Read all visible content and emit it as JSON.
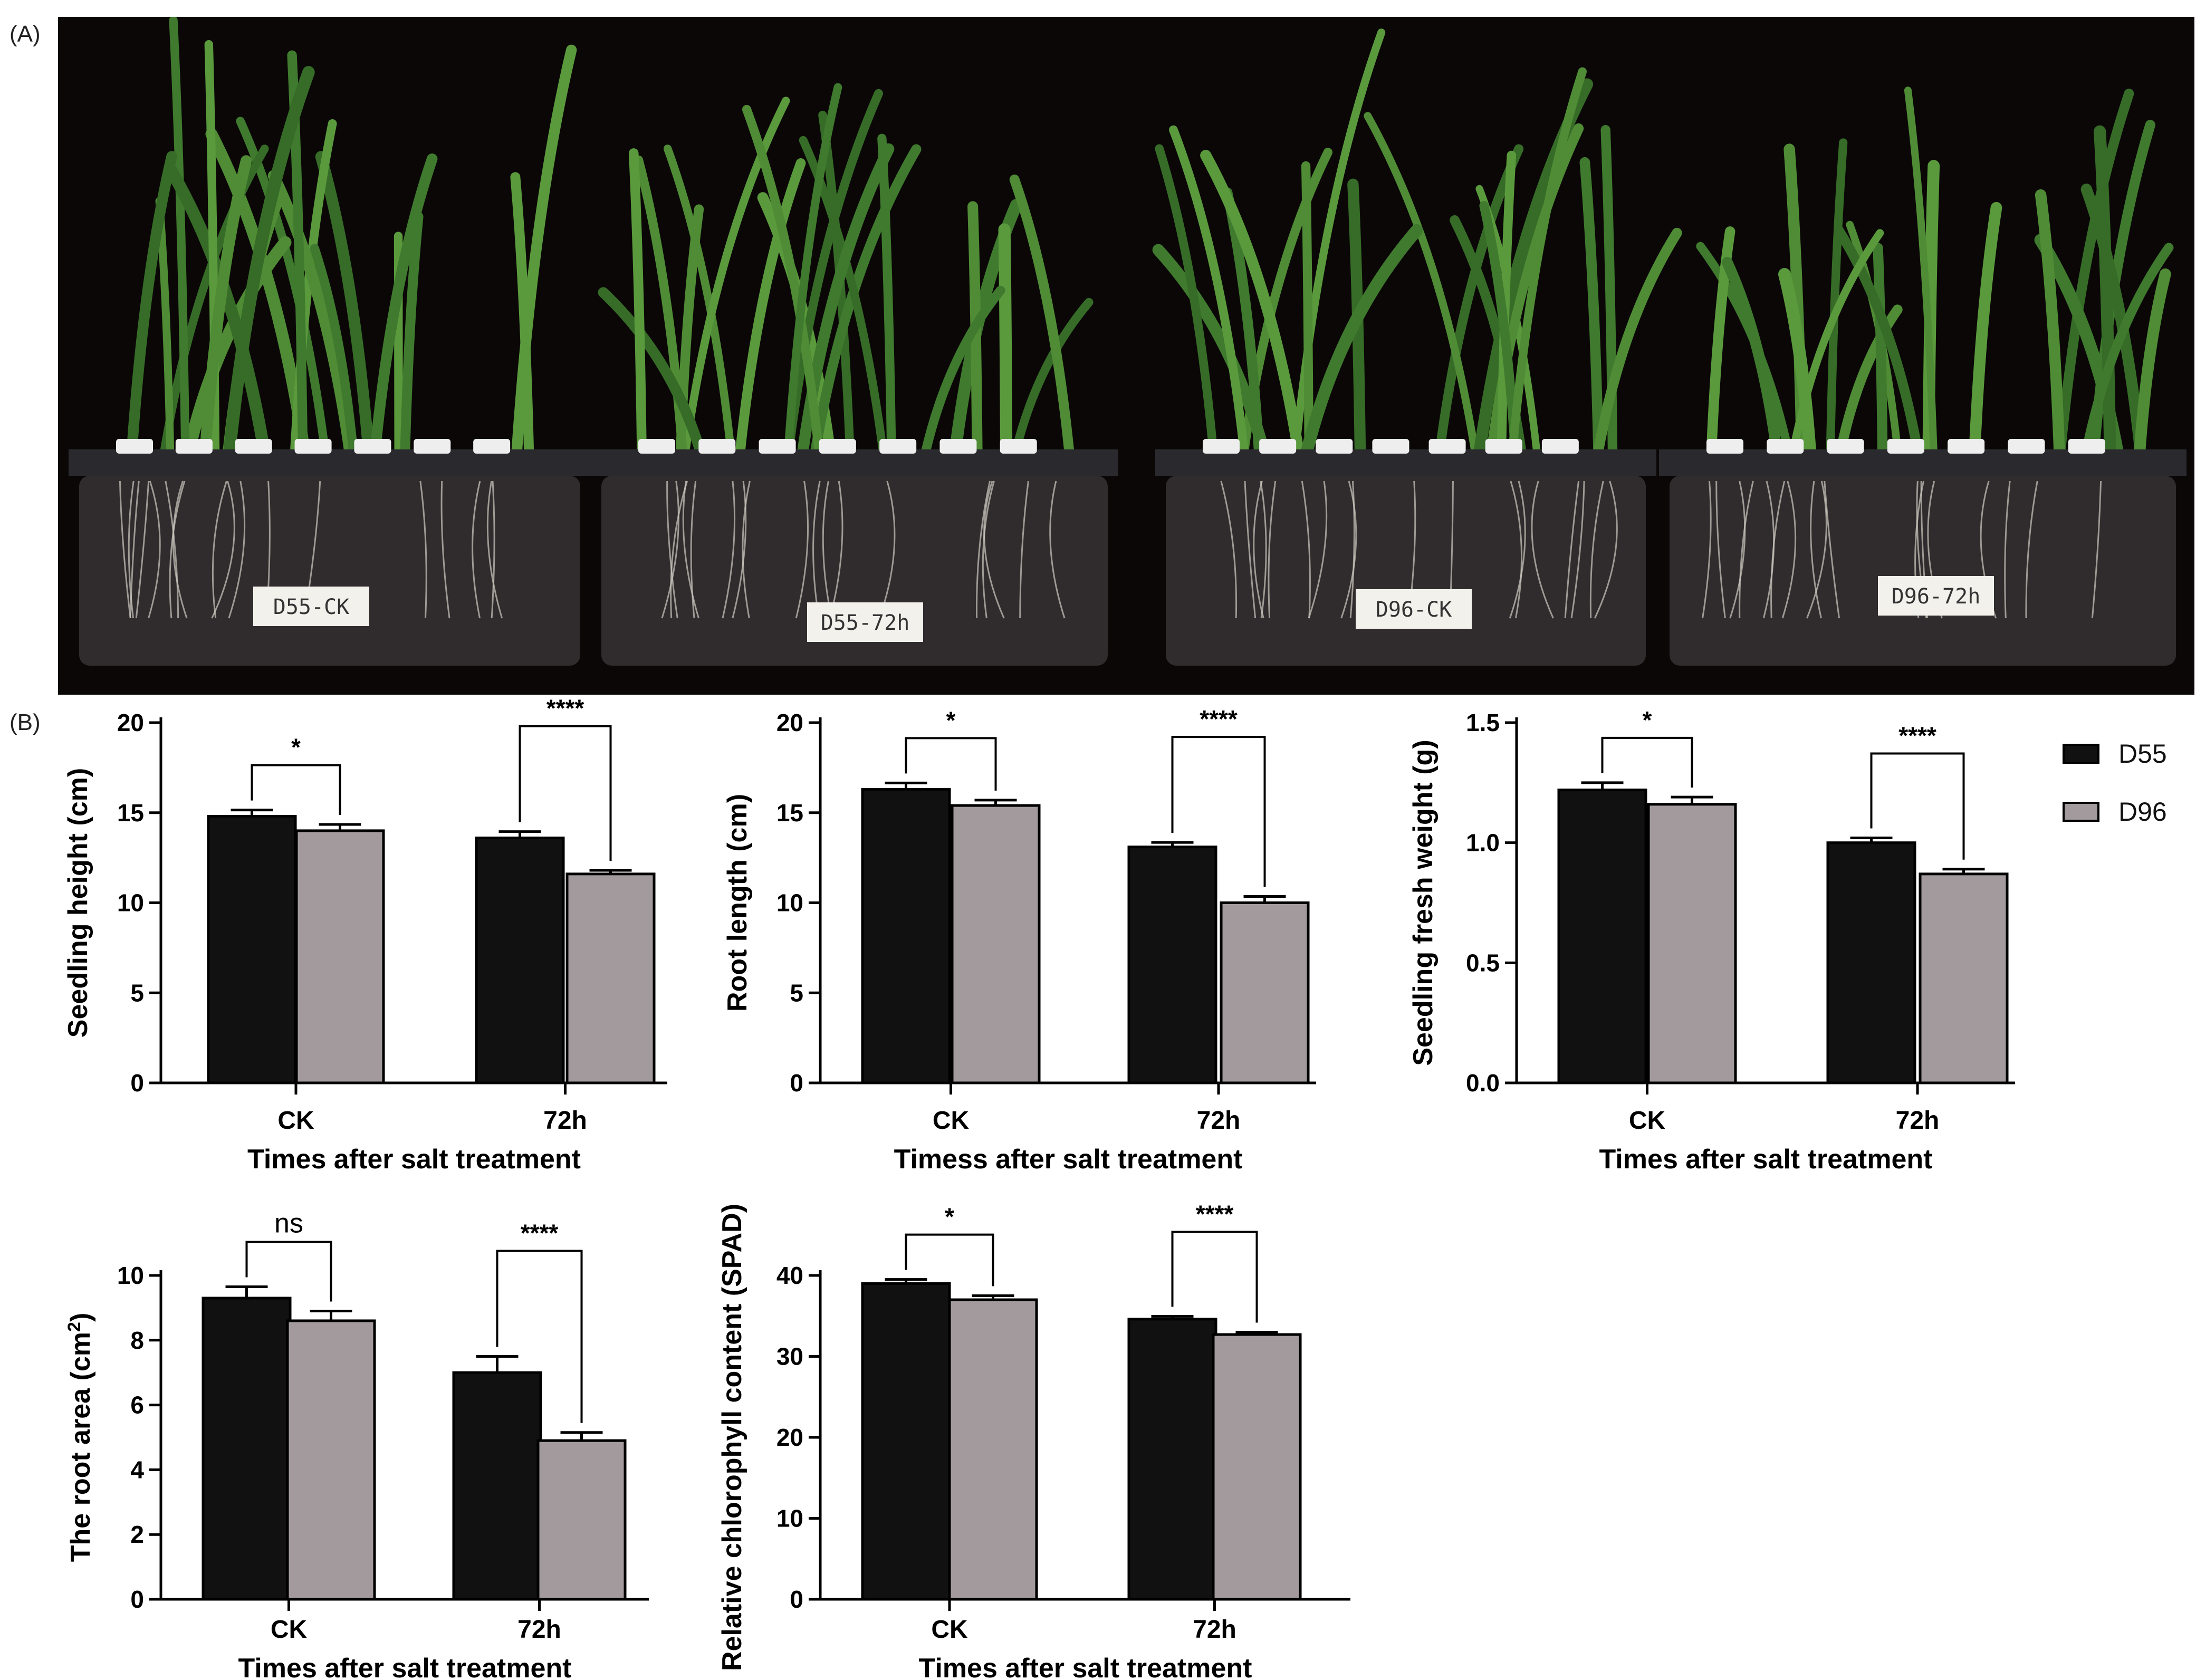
{
  "panels": {
    "a_label": "(A)",
    "b_label": "(B)"
  },
  "photo": {
    "labels": [
      "D55-CK",
      "D55-72h",
      "D96-CK",
      "D96-72h"
    ]
  },
  "legend": [
    {
      "name": "D55",
      "color": "#111111"
    },
    {
      "name": "D96",
      "color": "#a29a9c"
    }
  ],
  "chart_data": [
    {
      "type": "bar",
      "categories": [
        "CK",
        "72h"
      ],
      "series": [
        {
          "name": "D55",
          "values": [
            14.8,
            13.6
          ],
          "errors": [
            0.35,
            0.35
          ]
        },
        {
          "name": "D96",
          "values": [
            14.0,
            11.6
          ],
          "errors": [
            0.35,
            0.2
          ]
        }
      ],
      "significance": [
        "*",
        "****"
      ],
      "xlabel": "Times after salt treatment",
      "ylabel": "Seedling height (cm)",
      "ylim": [
        0,
        20
      ],
      "yticks": [
        "0",
        "5",
        "10",
        "15",
        "20"
      ]
    },
    {
      "type": "bar",
      "categories": [
        "CK",
        "72h"
      ],
      "series": [
        {
          "name": "D55",
          "values": [
            16.3,
            13.1
          ],
          "errors": [
            0.35,
            0.25
          ]
        },
        {
          "name": "D96",
          "values": [
            15.4,
            10.0
          ],
          "errors": [
            0.3,
            0.35
          ]
        }
      ],
      "significance": [
        "*",
        "****"
      ],
      "xlabel": "Timess after salt treatment",
      "ylabel": "Root length (cm)",
      "ylim": [
        0,
        20
      ],
      "yticks": [
        "0",
        "5",
        "10",
        "15",
        "20"
      ]
    },
    {
      "type": "bar",
      "categories": [
        "CK",
        "72h"
      ],
      "series": [
        {
          "name": "D55",
          "values": [
            1.22,
            1.0
          ],
          "errors": [
            0.03,
            0.02
          ]
        },
        {
          "name": "D96",
          "values": [
            1.16,
            0.87
          ],
          "errors": [
            0.03,
            0.02
          ]
        }
      ],
      "significance": [
        "*",
        "****"
      ],
      "xlabel": "Times after salt treatment",
      "ylabel": "Seedling fresh weight (g)",
      "ylim": [
        0,
        1.5
      ],
      "yticks": [
        "0.0",
        "0.5",
        "1.0",
        "1.5"
      ]
    },
    {
      "type": "bar",
      "categories": [
        "CK",
        "72h"
      ],
      "series": [
        {
          "name": "D55",
          "values": [
            9.3,
            7.0
          ],
          "errors": [
            0.35,
            0.5
          ]
        },
        {
          "name": "D96",
          "values": [
            8.6,
            4.9
          ],
          "errors": [
            0.3,
            0.25
          ]
        }
      ],
      "significance": [
        "ns",
        "****"
      ],
      "xlabel": "Times after salt treatment",
      "ylabel": "The root area (cm",
      "ylabel_sup": "2",
      "ylabel_end": ")",
      "ylim": [
        0,
        10
      ],
      "yticks": [
        "0",
        "2",
        "4",
        "6",
        "8",
        "10"
      ]
    },
    {
      "type": "bar",
      "categories": [
        "CK",
        "72h"
      ],
      "series": [
        {
          "name": "D55",
          "values": [
            39.0,
            34.6
          ],
          "errors": [
            0.5,
            0.35
          ]
        },
        {
          "name": "D96",
          "values": [
            37.0,
            32.7
          ],
          "errors": [
            0.5,
            0.3
          ]
        }
      ],
      "significance": [
        "*",
        "****"
      ],
      "xlabel": "Times after salt treatment",
      "ylabel": "Relative chlorophyll content (SPAD)",
      "ylim": [
        0,
        40
      ],
      "yticks": [
        "0",
        "10",
        "20",
        "30",
        "40"
      ]
    }
  ]
}
